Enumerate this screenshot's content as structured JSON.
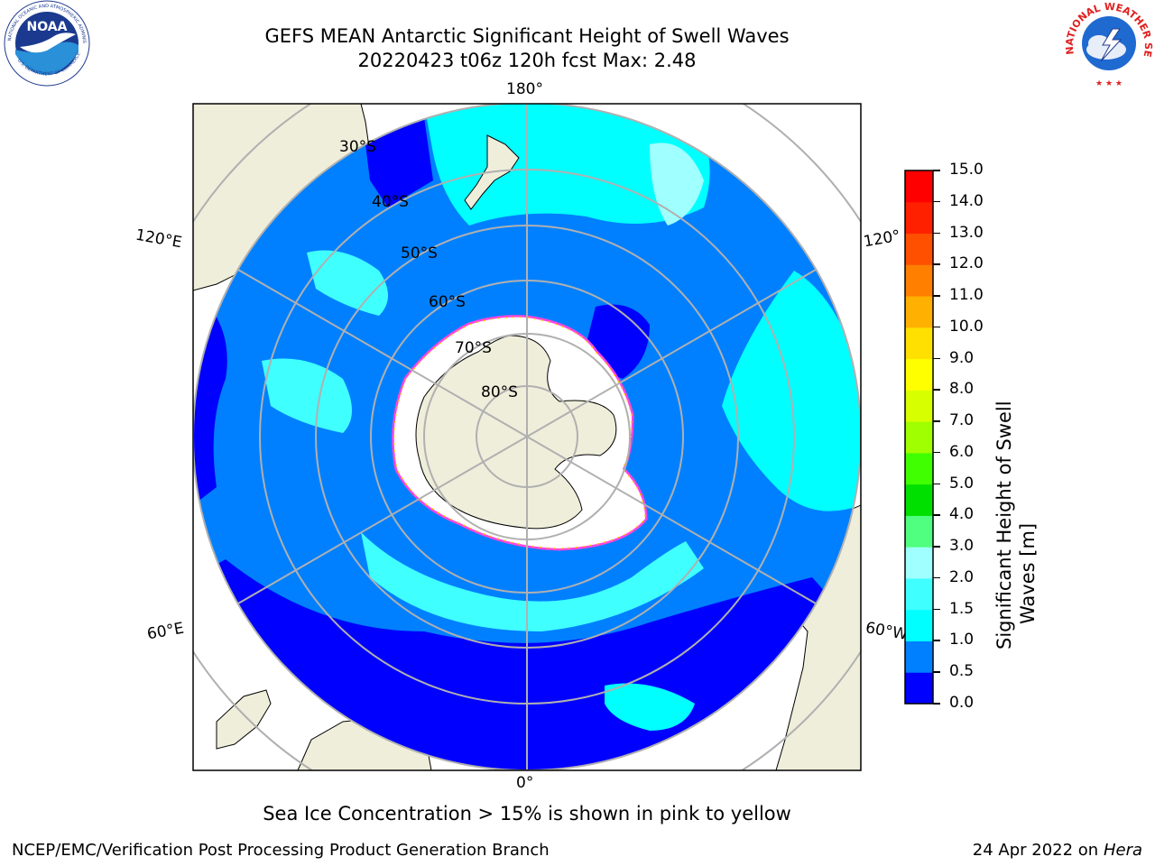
{
  "header": {
    "title_line1": "GEFS MEAN Antarctic Significant Height of Swell Waves",
    "title_line2": "20220423 t06z 120h fcst   Max: 2.48"
  },
  "logos": {
    "left": {
      "name": "NOAA",
      "ring_text": "NATIONAL OCEANIC AND ATMOSPHERIC ADMINISTRATION",
      "bottom_text": "U.S. DEPARTMENT OF COMMERCE"
    },
    "right": {
      "ring_text": "NATIONAL WEATHER SERVICE"
    }
  },
  "map": {
    "lon_labels": {
      "top": "180°",
      "bottom": "0°",
      "upper_left": "120°E",
      "lower_left": "60°E",
      "upper_right": "120°",
      "lower_right": "60°W"
    },
    "lat_labels": [
      "30°S",
      "40°S",
      "50°S",
      "60°S",
      "70°S",
      "80°S"
    ],
    "colors": {
      "land": "#efeedb",
      "ice": "#ffffff",
      "ice_edge_pink": "#ff44dd",
      "ice_edge_yellow": "#ffcc00",
      "grid": "#b0b0b0"
    }
  },
  "colorbar": {
    "label": "Significant Height of Swell Waves [m]",
    "label_line1": "Significant Height of Swell",
    "label_line2": "Waves [m]",
    "ticks": [
      "0.0",
      "0.5",
      "1.0",
      "1.5",
      "2.0",
      "3.0",
      "4.0",
      "5.0",
      "6.0",
      "7.0",
      "8.0",
      "9.0",
      "10.0",
      "11.0",
      "12.0",
      "13.0",
      "14.0",
      "15.0"
    ],
    "colors": [
      "#0000ff",
      "#0080ff",
      "#00ffff",
      "#40ffff",
      "#a0ffff",
      "#50ff80",
      "#00e000",
      "#40ff00",
      "#a0ff00",
      "#d8ff00",
      "#ffff00",
      "#ffe000",
      "#ffb000",
      "#ff8000",
      "#ff5000",
      "#ff2000",
      "#ff0000"
    ]
  },
  "note": "Sea Ice Concentration > 15% is shown in pink to yellow",
  "footer": {
    "left": "NCEP/EMC/Verification Post Processing Product Generation Branch",
    "right_prefix": "24 Apr 2022 on ",
    "right_host": "Hera"
  }
}
